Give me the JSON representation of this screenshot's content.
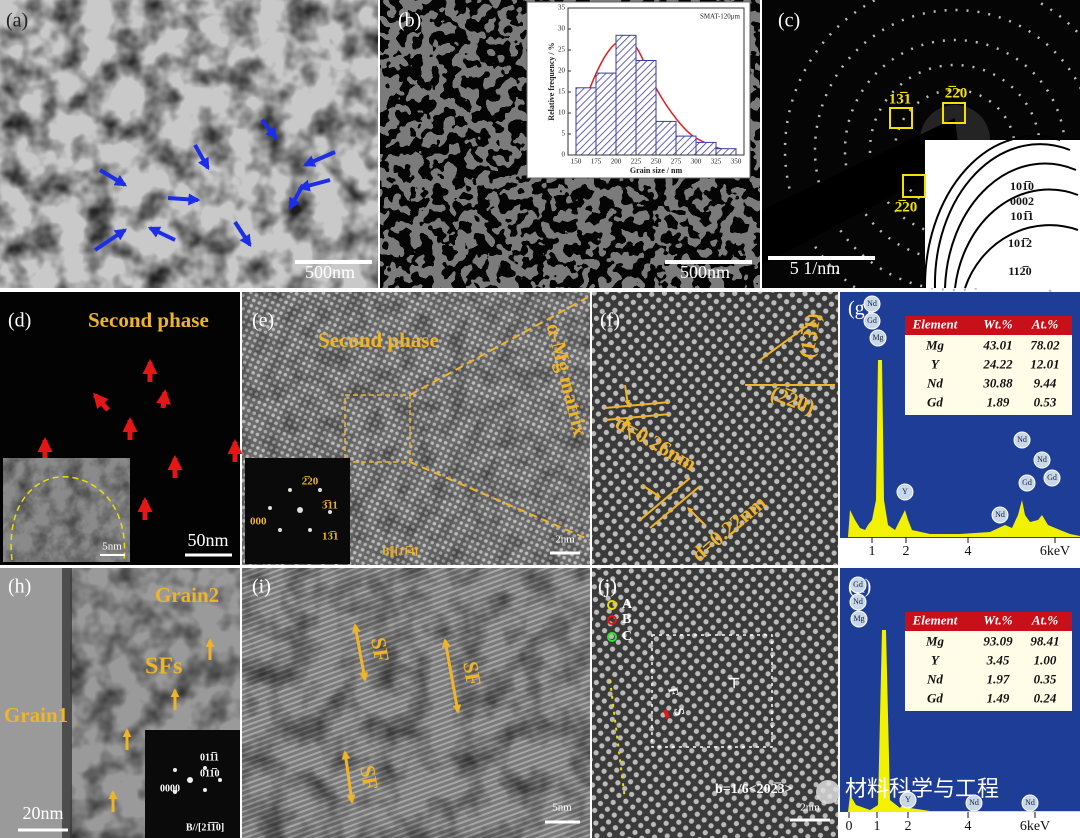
{
  "panels": {
    "a": {
      "label": "(a)",
      "scale_bar": "500nm"
    },
    "b": {
      "label": "(b)",
      "scale_bar": "500nm",
      "histogram": {
        "type": "histogram",
        "title": "SMAT-120μm",
        "x_label": "Grain size / nm",
        "y_label": "Relative frequency / %",
        "bins": [
          150,
          175,
          200,
          225,
          250,
          275,
          300,
          325,
          350
        ],
        "values": [
          16,
          19.5,
          28.5,
          22.5,
          8,
          4.5,
          3,
          1.5
        ],
        "color": "#3a3aa8",
        "xlim": [
          140,
          360
        ],
        "ylim": [
          0,
          35
        ],
        "xticks": [
          150,
          175,
          200,
          225,
          250,
          275,
          300,
          325,
          350
        ],
        "yticks": [
          0,
          5,
          10,
          15,
          20,
          25,
          30,
          35
        ]
      }
    },
    "c": {
      "label": "(c)",
      "scale_bar": "5 1/nm",
      "spot_labels": [
        "13̅1",
        "2̅20",
        "2̅20"
      ],
      "ring_labels": [
        "101̅0",
        "0002",
        "101̅1",
        "101̅2",
        "112̅0"
      ]
    },
    "d": {
      "label": "(d)",
      "title": "Second phase",
      "scale_bar": "50nm",
      "inset_scale_bar": "5nm"
    },
    "e": {
      "label": "(e)",
      "title": "Second phase",
      "matrix_label": "α-Mg matrix",
      "scale_bar": "2nm",
      "zone_axis": "B∥[11̅4]",
      "fft_labels": [
        "2̅20",
        "3̅11",
        "000",
        "13̅1"
      ]
    },
    "f": {
      "label": "(f)",
      "d_spacings": [
        "d=0.26nm",
        "d=0.22nm"
      ],
      "planes": [
        "(13̅1)",
        "(2̅20)"
      ]
    },
    "g": {
      "label": "(g)",
      "eds": {
        "header": [
          "Element",
          "Wt.%",
          "At.%"
        ],
        "rows": [
          [
            "Mg",
            "43.01",
            "78.02"
          ],
          [
            "Y",
            "24.22",
            "12.01"
          ],
          [
            "Nd",
            "30.88",
            "9.44"
          ],
          [
            "Gd",
            "1.89",
            "0.53"
          ]
        ],
        "axis_labels": [
          "1",
          "2",
          "4",
          "6keV"
        ],
        "peak_labels": [
          "Nd",
          "Gd",
          "Mg",
          "Y",
          "Nd",
          "Nd",
          "Nd",
          "Gd",
          "Gd"
        ]
      }
    },
    "h": {
      "label": "(h)",
      "grain2": "Grain2",
      "sfs": "SFs",
      "grain1": "Grain1",
      "scale_bar": "20nm",
      "fft_labels": [
        "011̅1",
        "011̅0",
        "0000",
        "B//[21̅1̅0]"
      ]
    },
    "i": {
      "label": "(i)",
      "sf_labels": [
        "SF",
        "SF",
        "SF"
      ],
      "scale_bar": "5nm"
    },
    "j": {
      "label": "(j)",
      "sites": [
        "A",
        "B",
        "C"
      ],
      "circuit": [
        "F",
        "S"
      ],
      "dislocation": "⊤",
      "burgers": "b=1/6<202̅3>",
      "scale_bar": "2nm"
    },
    "k": {
      "label": "(k)",
      "eds": {
        "header": [
          "Element",
          "Wt.%",
          "At.%"
        ],
        "rows": [
          [
            "Mg",
            "93.09",
            "98.41"
          ],
          [
            "Y",
            "3.45",
            "1.00"
          ],
          [
            "Nd",
            "1.97",
            "0.35"
          ],
          [
            "Gd",
            "1.49",
            "0.24"
          ]
        ],
        "axis_labels": [
          "0",
          "1",
          "2",
          "4",
          "6keV"
        ],
        "peak_labels": [
          "Gd",
          "Nd",
          "Mg",
          "Y",
          "Nd",
          "Nd"
        ]
      }
    }
  },
  "watermark": "材料科学与工程"
}
